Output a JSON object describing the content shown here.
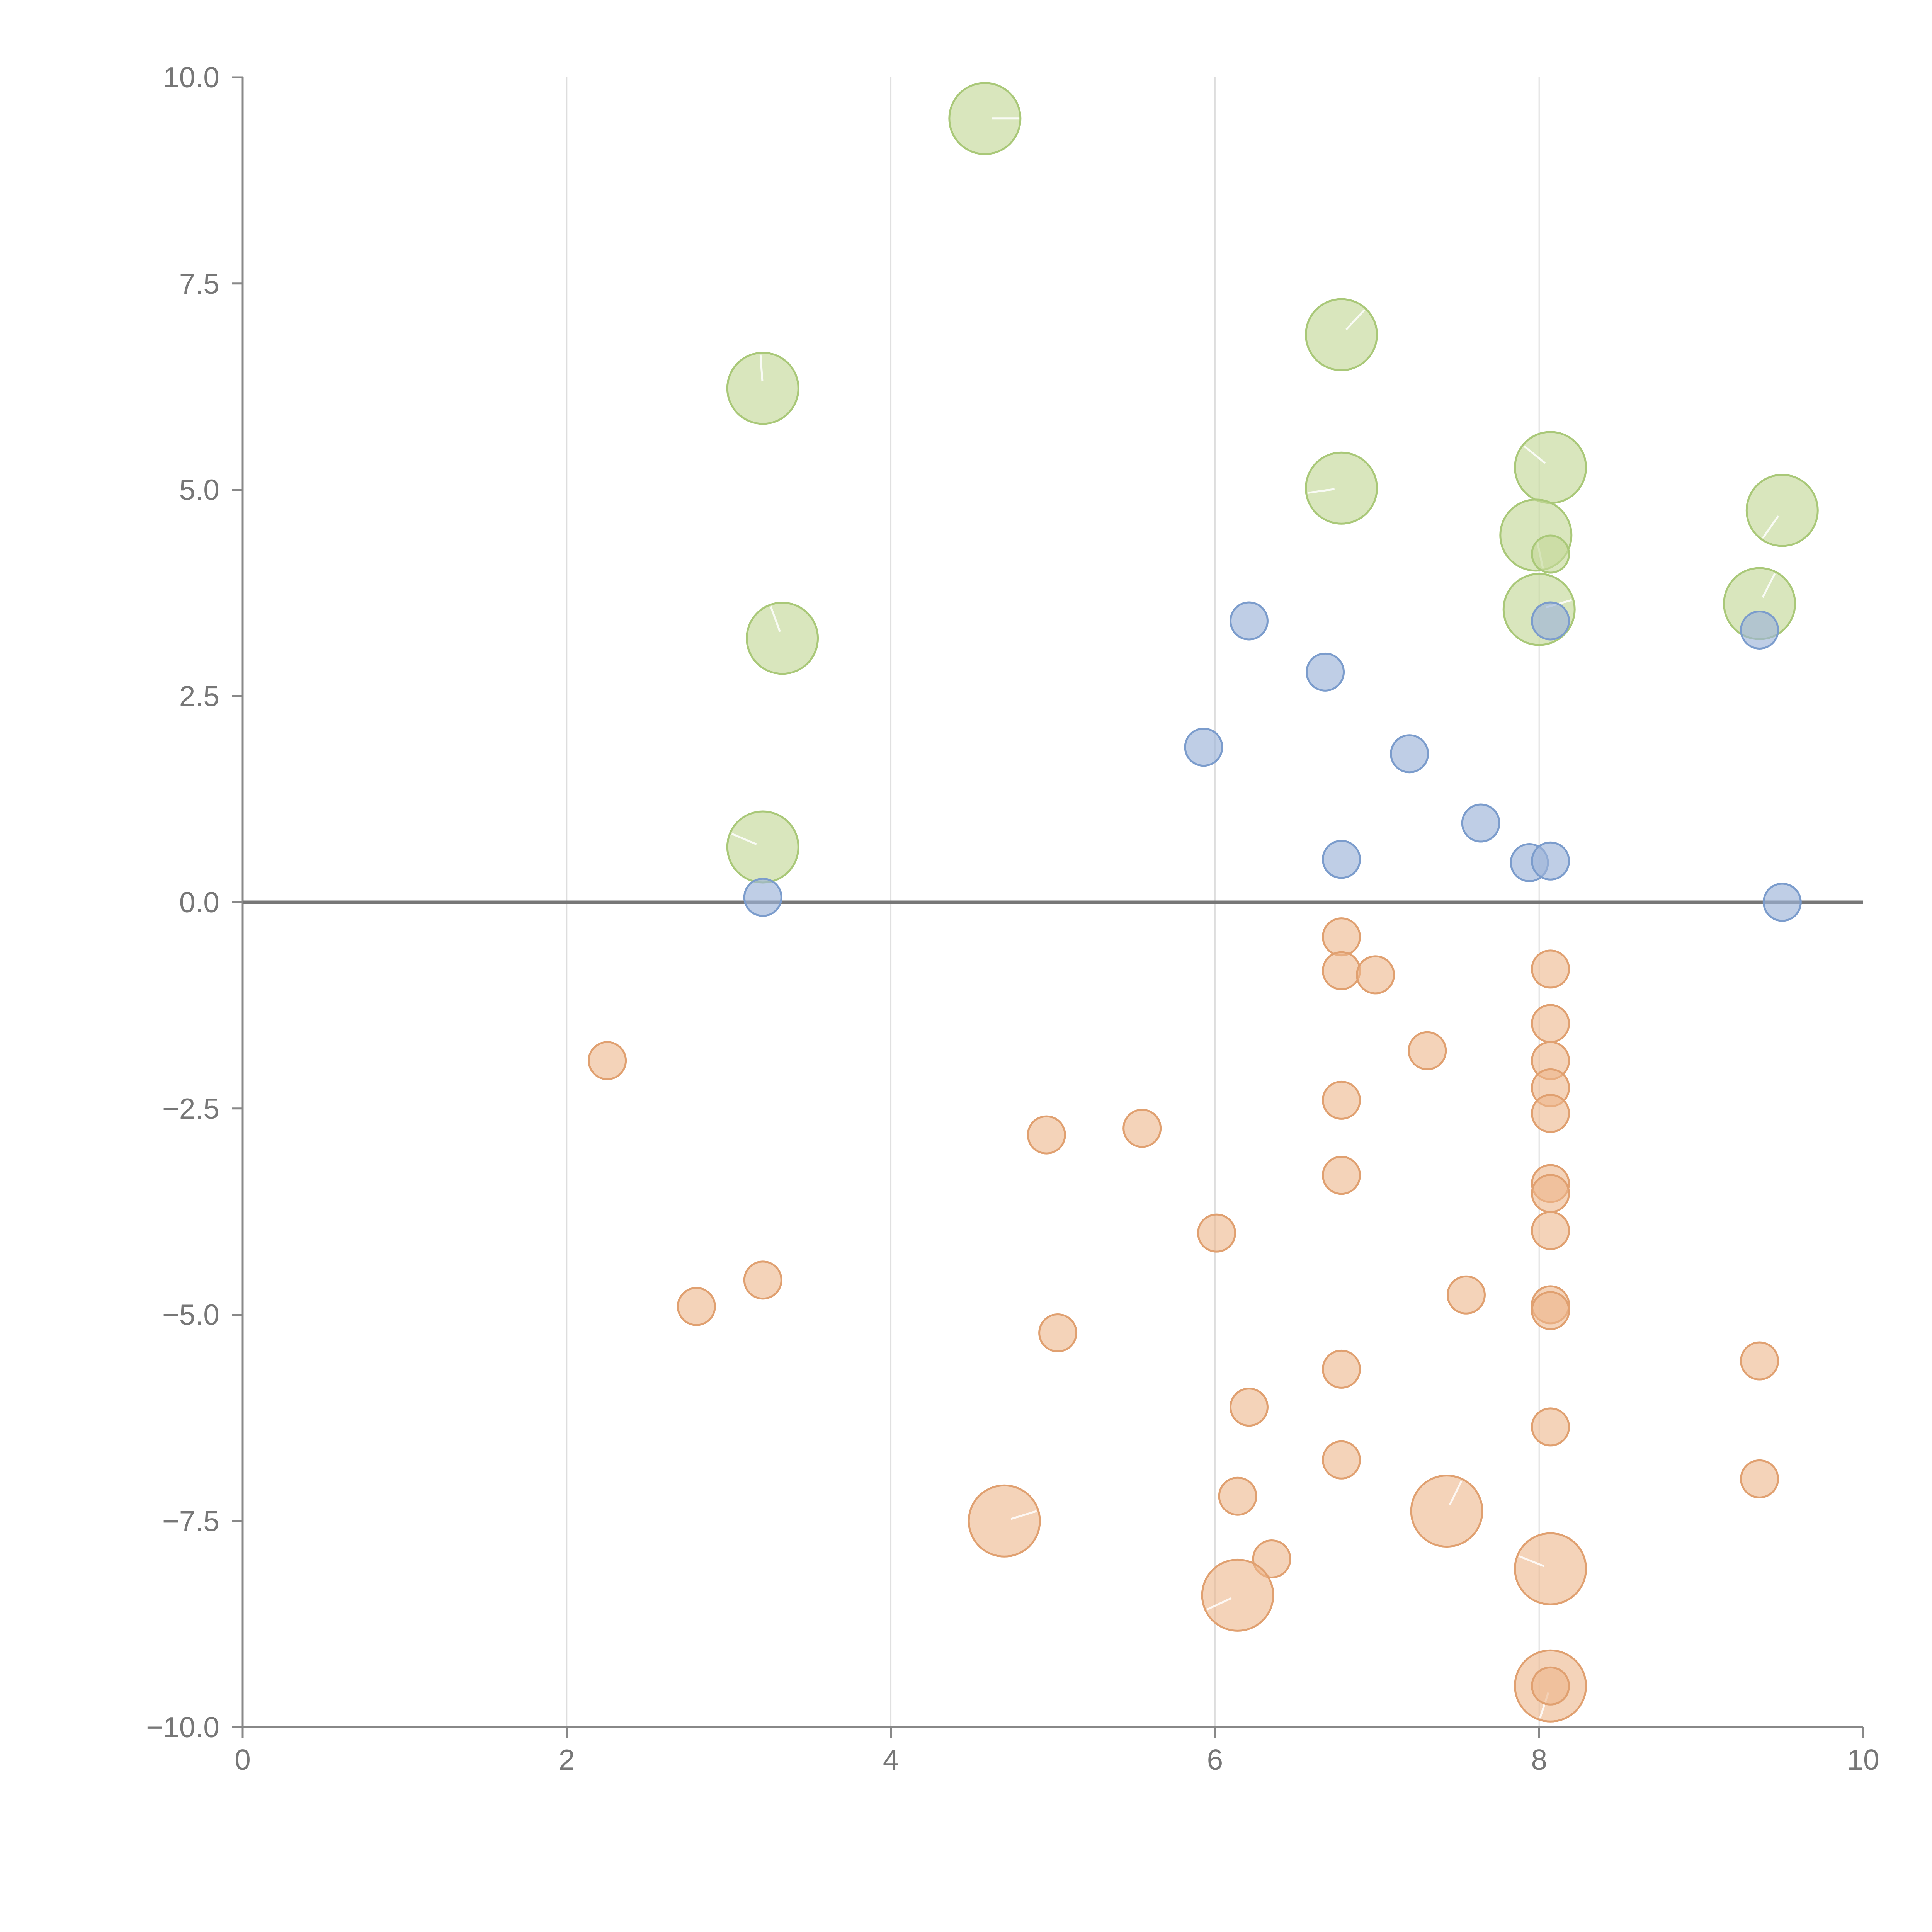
{
  "chart_data": {
    "type": "scatter",
    "title": "",
    "xlabel": "",
    "ylabel": "",
    "xlim": [
      0,
      10
    ],
    "ylim": [
      -10,
      10
    ],
    "grid": "vertical",
    "x_ticks": [
      0,
      2,
      4,
      6,
      8,
      10
    ],
    "x_tick_labels": [
      "0",
      "2",
      "4",
      "6",
      "8",
      "10"
    ],
    "y_ticks": [
      10,
      7.5,
      5,
      2.5,
      0,
      -2.5,
      -5,
      -7.5,
      -10
    ],
    "y_tick_labels": [
      "10.0",
      "7.5",
      "5.0",
      "2.5",
      "0.0",
      "−2.5",
      "−5.0",
      "−7.5",
      "−10.0"
    ],
    "colors": {
      "green": "#c5d99a",
      "blue": "#9db3d9",
      "orange": "#ecb68a"
    },
    "series": [
      {
        "name": "green",
        "size": "large",
        "points": [
          {
            "x": 4.58,
            "y": 9.5
          },
          {
            "x": 6.78,
            "y": 6.88
          },
          {
            "x": 3.21,
            "y": 6.23
          },
          {
            "x": 8.07,
            "y": 5.27
          },
          {
            "x": 6.78,
            "y": 5.02
          },
          {
            "x": 9.5,
            "y": 4.75
          },
          {
            "x": 7.98,
            "y": 4.45
          },
          {
            "x": 8.07,
            "y": 4.22,
            "size": "small"
          },
          {
            "x": 8.0,
            "y": 3.55
          },
          {
            "x": 9.36,
            "y": 3.62
          },
          {
            "x": 3.33,
            "y": 3.2
          },
          {
            "x": 3.21,
            "y": 0.67
          }
        ]
      },
      {
        "name": "blue",
        "size": "small",
        "points": [
          {
            "x": 6.21,
            "y": 3.41
          },
          {
            "x": 8.07,
            "y": 3.41
          },
          {
            "x": 9.36,
            "y": 3.3
          },
          {
            "x": 6.68,
            "y": 2.79
          },
          {
            "x": 5.93,
            "y": 1.88
          },
          {
            "x": 7.2,
            "y": 1.8
          },
          {
            "x": 7.64,
            "y": 0.96
          },
          {
            "x": 6.78,
            "y": 0.52
          },
          {
            "x": 7.94,
            "y": 0.48
          },
          {
            "x": 8.07,
            "y": 0.5
          },
          {
            "x": 3.21,
            "y": 0.06
          },
          {
            "x": 9.5,
            "y": 0.0
          }
        ]
      },
      {
        "name": "orange",
        "size": "small",
        "points": [
          {
            "x": 6.78,
            "y": -0.42
          },
          {
            "x": 6.78,
            "y": -0.83
          },
          {
            "x": 6.99,
            "y": -0.88
          },
          {
            "x": 8.07,
            "y": -0.81
          },
          {
            "x": 8.07,
            "y": -1.47
          },
          {
            "x": 2.25,
            "y": -1.92
          },
          {
            "x": 7.31,
            "y": -1.8
          },
          {
            "x": 8.07,
            "y": -1.92
          },
          {
            "x": 8.07,
            "y": -2.25
          },
          {
            "x": 6.78,
            "y": -2.4
          },
          {
            "x": 8.07,
            "y": -2.56
          },
          {
            "x": 4.96,
            "y": -2.82
          },
          {
            "x": 5.55,
            "y": -2.74
          },
          {
            "x": 6.78,
            "y": -3.31
          },
          {
            "x": 8.07,
            "y": -3.41
          },
          {
            "x": 8.07,
            "y": -3.53
          },
          {
            "x": 6.01,
            "y": -4.01
          },
          {
            "x": 8.07,
            "y": -3.98
          },
          {
            "x": 3.21,
            "y": -4.58
          },
          {
            "x": 2.8,
            "y": -4.9
          },
          {
            "x": 7.55,
            "y": -4.76
          },
          {
            "x": 8.07,
            "y": -4.88
          },
          {
            "x": 8.07,
            "y": -4.95
          },
          {
            "x": 5.03,
            "y": -5.22
          },
          {
            "x": 9.36,
            "y": -5.56
          },
          {
            "x": 6.78,
            "y": -5.66
          },
          {
            "x": 6.21,
            "y": -6.12
          },
          {
            "x": 8.07,
            "y": -6.36
          },
          {
            "x": 6.78,
            "y": -6.76
          },
          {
            "x": 9.36,
            "y": -6.99
          },
          {
            "x": 6.14,
            "y": -7.2
          },
          {
            "x": 4.7,
            "y": -7.5,
            "size": "large"
          },
          {
            "x": 7.43,
            "y": -7.38,
            "size": "large"
          },
          {
            "x": 6.35,
            "y": -7.96
          },
          {
            "x": 8.07,
            "y": -8.08,
            "size": "large"
          },
          {
            "x": 6.14,
            "y": -8.4,
            "size": "large"
          },
          {
            "x": 8.07,
            "y": -9.5,
            "size": "large"
          },
          {
            "x": 8.07,
            "y": -9.5
          }
        ]
      }
    ]
  }
}
